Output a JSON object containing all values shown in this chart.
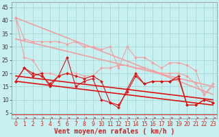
{
  "xlabel": "Vent moyen/en rafales ( km/h )",
  "bg_color": "#c8f0f0",
  "grid_color": "#9fd4d4",
  "xlim": [
    -0.5,
    23.5
  ],
  "ylim": [
    3,
    47
  ],
  "yticks": [
    5,
    10,
    15,
    20,
    25,
    30,
    35,
    40,
    45
  ],
  "xticks": [
    0,
    1,
    2,
    3,
    4,
    5,
    6,
    7,
    8,
    9,
    10,
    11,
    12,
    13,
    14,
    15,
    16,
    17,
    18,
    19,
    20,
    21,
    22,
    23
  ],
  "lines": [
    {
      "x": [
        0,
        1,
        2,
        3,
        4,
        5,
        6,
        7,
        8,
        9,
        10,
        11,
        12,
        13,
        14,
        15,
        16,
        17,
        18,
        19,
        20,
        21,
        22,
        23
      ],
      "y": [
        41,
        33,
        32,
        32,
        32,
        32,
        31,
        32,
        30,
        30,
        29,
        30,
        22,
        30,
        26,
        26,
        24,
        22,
        24,
        24,
        23,
        21,
        12,
        16
      ],
      "color": "#f0a0a0",
      "lw": 0.8,
      "marker": "D",
      "ms": 2.0,
      "zorder": 3
    },
    {
      "x": [
        0,
        1,
        2,
        3,
        4,
        5,
        6,
        7,
        8,
        9,
        10,
        11,
        12,
        13,
        14,
        15,
        16,
        17,
        18,
        19,
        20,
        21,
        22,
        23
      ],
      "y": [
        41,
        26,
        25,
        20,
        20,
        19,
        20,
        20,
        19,
        19,
        22,
        22,
        23,
        23,
        22,
        22,
        21,
        20,
        20,
        20,
        19,
        16,
        12,
        15
      ],
      "color": "#f0a0a0",
      "lw": 0.8,
      "marker": "D",
      "ms": 2.0,
      "zorder": 3
    },
    {
      "x": [
        0,
        1,
        2,
        3,
        4,
        5,
        6,
        7,
        8,
        9,
        10,
        11,
        12,
        13,
        14,
        15,
        16,
        17,
        18,
        19,
        20,
        21,
        22,
        23
      ],
      "y": [
        17,
        22,
        20,
        19,
        16,
        19,
        20,
        19,
        18,
        19,
        17,
        9,
        8,
        13,
        19,
        16,
        17,
        17,
        17,
        19,
        8,
        8,
        10,
        9
      ],
      "color": "#dd1111",
      "lw": 0.8,
      "marker": "D",
      "ms": 2.0,
      "zorder": 4
    },
    {
      "x": [
        0,
        1,
        2,
        3,
        4,
        5,
        6,
        7,
        8,
        9,
        10,
        11,
        12,
        13,
        14,
        15,
        16,
        17,
        18,
        19,
        20,
        21,
        22,
        23
      ],
      "y": [
        17,
        22,
        19,
        20,
        15,
        19,
        26,
        15,
        17,
        18,
        10,
        9,
        7,
        14,
        20,
        16,
        17,
        17,
        17,
        18,
        8,
        8,
        10,
        9
      ],
      "color": "#dd1111",
      "lw": 0.8,
      "marker": "D",
      "ms": 2.0,
      "zorder": 4
    },
    {
      "x": [
        0,
        23
      ],
      "y": [
        19,
        10
      ],
      "color": "#dd1111",
      "lw": 1.2,
      "marker": null,
      "ms": 0,
      "zorder": 2
    },
    {
      "x": [
        0,
        23
      ],
      "y": [
        17,
        8
      ],
      "color": "#dd1111",
      "lw": 1.2,
      "marker": null,
      "ms": 0,
      "zorder": 2
    },
    {
      "x": [
        0,
        23
      ],
      "y": [
        33,
        15
      ],
      "color": "#f0a0a0",
      "lw": 1.2,
      "marker": null,
      "ms": 0,
      "zorder": 2
    },
    {
      "x": [
        0,
        23
      ],
      "y": [
        41,
        12
      ],
      "color": "#f0a0a0",
      "lw": 1.2,
      "marker": null,
      "ms": 0,
      "zorder": 2
    }
  ],
  "arrow_color": "#cc3333",
  "xlabel_color": "#cc2222",
  "xlabel_fontsize": 7,
  "tick_fontsize": 5.5,
  "ytick_color": "#333333",
  "xtick_color": "#cc2222"
}
